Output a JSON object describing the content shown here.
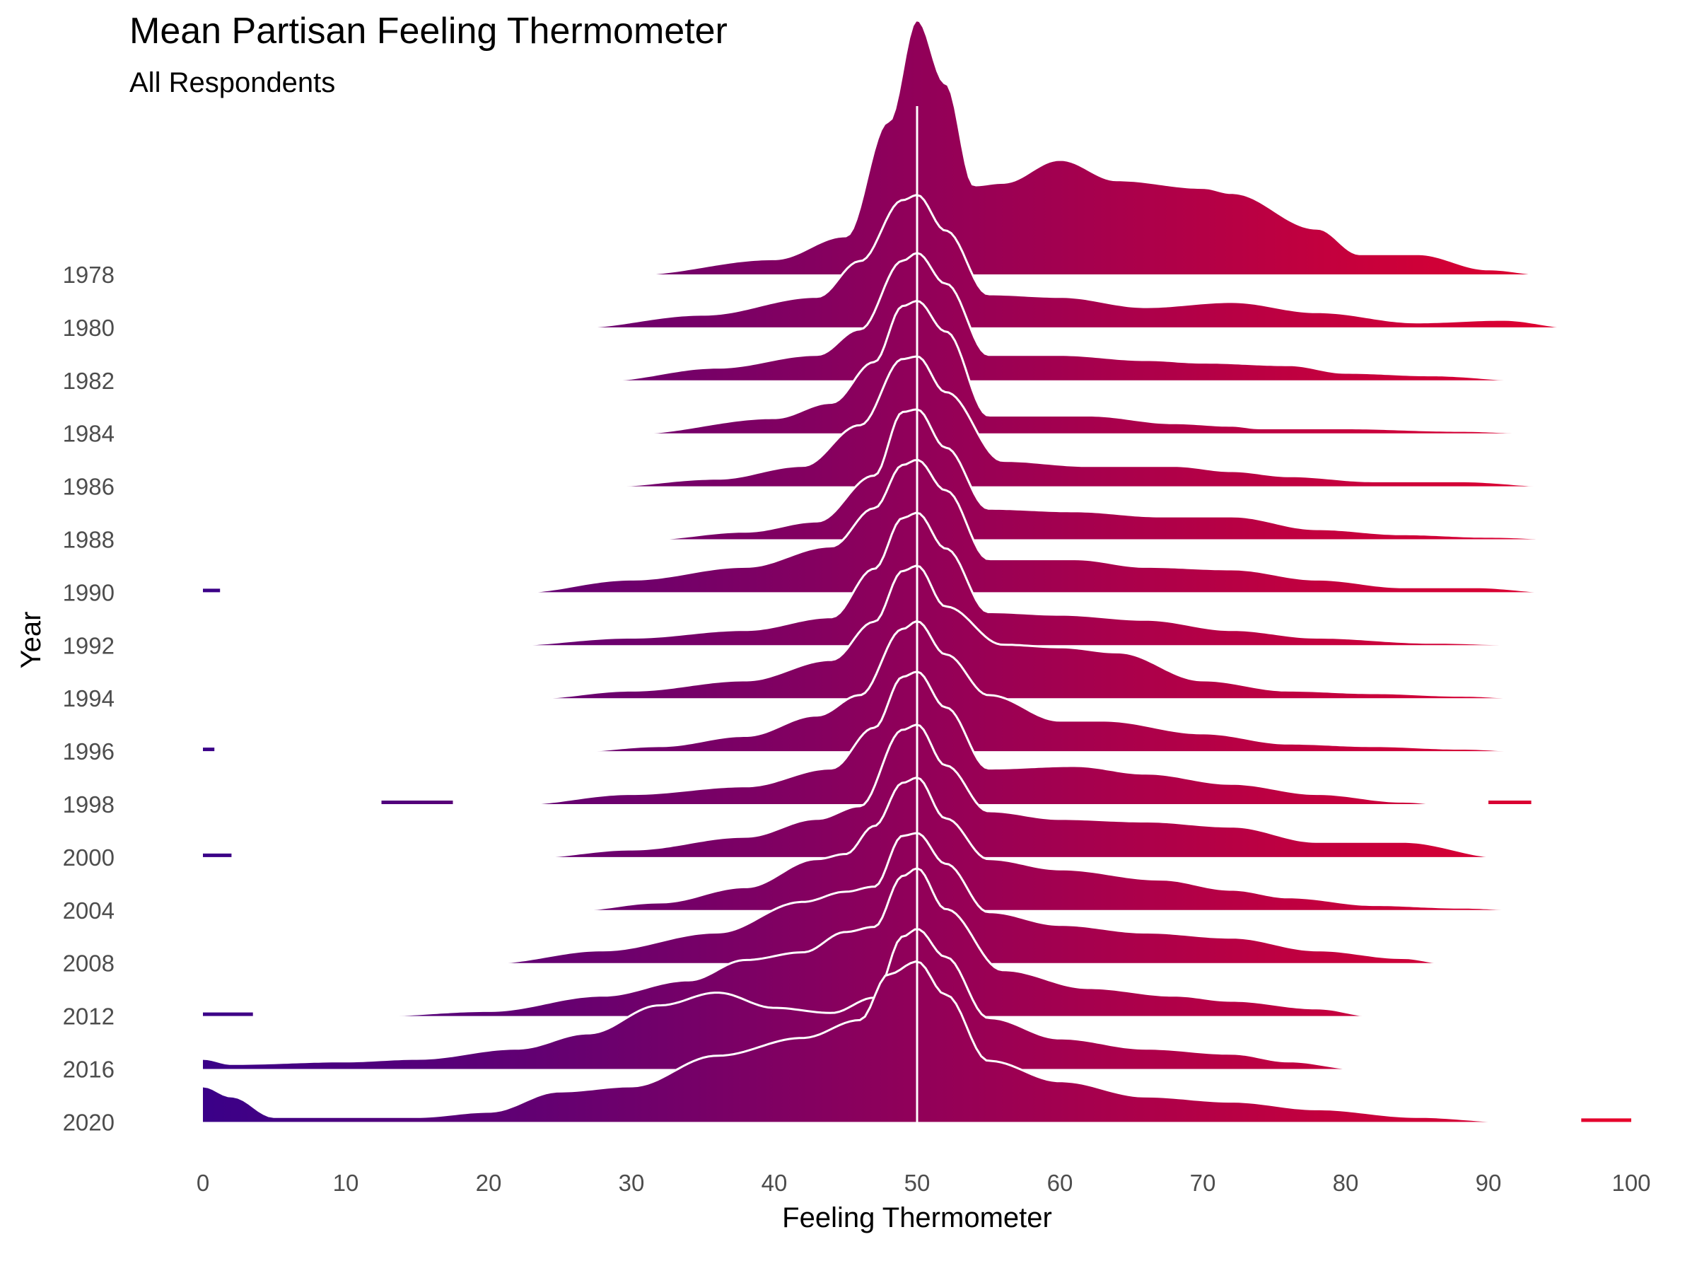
{
  "chart_data": {
    "type": "ridgeline",
    "title": "Mean Partisan Feeling Thermometer",
    "subtitle": "All Respondents",
    "xlabel": "Feeling Thermometer",
    "ylabel": "Year",
    "xlim": [
      0,
      100
    ],
    "x_ticks": [
      "0",
      "10",
      "20",
      "30",
      "40",
      "50",
      "60",
      "70",
      "80",
      "90",
      "100"
    ],
    "reference_line_x": 50,
    "gradient_colors": {
      "low": "#3a0088",
      "high": "#e8002a"
    },
    "years": [
      "1978",
      "1980",
      "1982",
      "1984",
      "1986",
      "1988",
      "1990",
      "1992",
      "1994",
      "1996",
      "1998",
      "2000",
      "2004",
      "2008",
      "2012",
      "2016",
      "2020"
    ],
    "series": [
      {
        "name": "1978",
        "range": [
          30,
          94
        ],
        "fragments": [],
        "density": [
          [
            30,
            0
          ],
          [
            40,
            0.06
          ],
          [
            45,
            0.15
          ],
          [
            48,
            0.6
          ],
          [
            50,
            1.0
          ],
          [
            52,
            0.75
          ],
          [
            54,
            0.35
          ],
          [
            56,
            0.36
          ],
          [
            60,
            0.45
          ],
          [
            64,
            0.37
          ],
          [
            70,
            0.34
          ],
          [
            72,
            0.32
          ],
          [
            78,
            0.18
          ],
          [
            81,
            0.08
          ],
          [
            85,
            0.08
          ],
          [
            90,
            0.02
          ],
          [
            94,
            0
          ]
        ]
      },
      {
        "name": "1980",
        "range": [
          26,
          96
        ],
        "fragments": [],
        "density": [
          [
            26,
            0
          ],
          [
            35,
            0.05
          ],
          [
            43,
            0.12
          ],
          [
            46,
            0.26
          ],
          [
            49,
            0.5
          ],
          [
            50,
            0.52
          ],
          [
            52,
            0.38
          ],
          [
            55,
            0.13
          ],
          [
            60,
            0.12
          ],
          [
            66,
            0.08
          ],
          [
            72,
            0.1
          ],
          [
            78,
            0.06
          ],
          [
            85,
            0.02
          ],
          [
            91,
            0.03
          ],
          [
            96,
            0
          ]
        ]
      },
      {
        "name": "1982",
        "range": [
          28,
          93
        ],
        "fragments": [],
        "density": [
          [
            28,
            0
          ],
          [
            36,
            0.05
          ],
          [
            43,
            0.1
          ],
          [
            46,
            0.2
          ],
          [
            49,
            0.47
          ],
          [
            50,
            0.5
          ],
          [
            52,
            0.38
          ],
          [
            55,
            0.1
          ],
          [
            60,
            0.1
          ],
          [
            66,
            0.08
          ],
          [
            70,
            0.07
          ],
          [
            76,
            0.06
          ],
          [
            80,
            0.03
          ],
          [
            86,
            0.02
          ],
          [
            93,
            0
          ]
        ]
      },
      {
        "name": "1984",
        "range": [
          30,
          94
        ],
        "fragments": [],
        "density": [
          [
            30,
            0
          ],
          [
            40,
            0.06
          ],
          [
            44,
            0.12
          ],
          [
            47,
            0.28
          ],
          [
            49,
            0.5
          ],
          [
            50,
            0.52
          ],
          [
            52,
            0.4
          ],
          [
            55,
            0.07
          ],
          [
            62,
            0.07
          ],
          [
            68,
            0.04
          ],
          [
            72,
            0.03
          ],
          [
            74,
            0.02
          ],
          [
            80,
            0.02
          ],
          [
            88,
            0.01
          ],
          [
            94,
            0
          ]
        ]
      },
      {
        "name": "1986",
        "range": [
          28,
          95
        ],
        "fragments": [],
        "density": [
          [
            28,
            0
          ],
          [
            36,
            0.03
          ],
          [
            42,
            0.08
          ],
          [
            46,
            0.24
          ],
          [
            49,
            0.5
          ],
          [
            50,
            0.51
          ],
          [
            52,
            0.37
          ],
          [
            56,
            0.1
          ],
          [
            62,
            0.08
          ],
          [
            68,
            0.08
          ],
          [
            72,
            0.06
          ],
          [
            76,
            0.04
          ],
          [
            82,
            0.02
          ],
          [
            88,
            0.02
          ],
          [
            95,
            0
          ]
        ]
      },
      {
        "name": "1988",
        "range": [
          31,
          96
        ],
        "fragments": [],
        "density": [
          [
            31,
            0
          ],
          [
            38,
            0.03
          ],
          [
            43,
            0.07
          ],
          [
            47,
            0.25
          ],
          [
            49,
            0.5
          ],
          [
            50,
            0.51
          ],
          [
            52,
            0.36
          ],
          [
            55,
            0.12
          ],
          [
            61,
            0.11
          ],
          [
            67,
            0.09
          ],
          [
            72,
            0.09
          ],
          [
            78,
            0.04
          ],
          [
            84,
            0.02
          ],
          [
            90,
            0.01
          ],
          [
            96,
            0
          ]
        ]
      },
      {
        "name": "1990",
        "range": [
          22,
          95
        ],
        "fragments": [
          [
            0,
            1.2
          ]
        ],
        "density": [
          [
            22,
            0
          ],
          [
            30,
            0.05
          ],
          [
            38,
            0.1
          ],
          [
            44,
            0.18
          ],
          [
            47,
            0.33
          ],
          [
            49,
            0.5
          ],
          [
            50,
            0.52
          ],
          [
            52,
            0.4
          ],
          [
            55,
            0.13
          ],
          [
            61,
            0.13
          ],
          [
            66,
            0.1
          ],
          [
            72,
            0.09
          ],
          [
            78,
            0.05
          ],
          [
            84,
            0.02
          ],
          [
            89,
            0.02
          ],
          [
            95,
            0
          ]
        ]
      },
      {
        "name": "1992",
        "range": [
          21,
          94
        ],
        "fragments": [],
        "density": [
          [
            21,
            0
          ],
          [
            30,
            0.03
          ],
          [
            38,
            0.06
          ],
          [
            44,
            0.11
          ],
          [
            47,
            0.3
          ],
          [
            49,
            0.5
          ],
          [
            50,
            0.52
          ],
          [
            52,
            0.38
          ],
          [
            55,
            0.13
          ],
          [
            60,
            0.12
          ],
          [
            66,
            0.1
          ],
          [
            72,
            0.06
          ],
          [
            78,
            0.03
          ],
          [
            86,
            0.01
          ],
          [
            94,
            0
          ]
        ]
      },
      {
        "name": "1994",
        "range": [
          23,
          93
        ],
        "fragments": [],
        "density": [
          [
            23,
            0
          ],
          [
            30,
            0.03
          ],
          [
            38,
            0.07
          ],
          [
            44,
            0.15
          ],
          [
            47,
            0.3
          ],
          [
            49,
            0.5
          ],
          [
            50,
            0.52
          ],
          [
            52,
            0.36
          ],
          [
            56,
            0.21
          ],
          [
            60,
            0.2
          ],
          [
            64,
            0.18
          ],
          [
            70,
            0.07
          ],
          [
            76,
            0.03
          ],
          [
            82,
            0.02
          ],
          [
            88,
            0.01
          ],
          [
            93,
            0
          ]
        ]
      },
      {
        "name": "1996",
        "range": [
          26,
          93
        ],
        "fragments": [
          [
            0,
            0.8
          ]
        ],
        "density": [
          [
            26,
            0
          ],
          [
            32,
            0.02
          ],
          [
            38,
            0.06
          ],
          [
            43,
            0.14
          ],
          [
            46,
            0.22
          ],
          [
            49,
            0.48
          ],
          [
            50,
            0.51
          ],
          [
            52,
            0.38
          ],
          [
            55,
            0.22
          ],
          [
            60,
            0.12
          ],
          [
            63,
            0.12
          ],
          [
            70,
            0.07
          ],
          [
            76,
            0.03
          ],
          [
            82,
            0.02
          ],
          [
            88,
            0.01
          ],
          [
            93,
            0
          ]
        ]
      },
      {
        "name": "1998",
        "range": [
          22,
          87
        ],
        "fragments": [
          [
            12.5,
            17.5
          ],
          [
            90,
            93
          ]
        ],
        "density": [
          [
            22,
            0
          ],
          [
            30,
            0.04
          ],
          [
            38,
            0.07
          ],
          [
            44,
            0.14
          ],
          [
            47,
            0.3
          ],
          [
            49,
            0.5
          ],
          [
            50,
            0.52
          ],
          [
            52,
            0.38
          ],
          [
            55,
            0.14
          ],
          [
            61,
            0.15
          ],
          [
            66,
            0.12
          ],
          [
            72,
            0.08
          ],
          [
            78,
            0.04
          ],
          [
            84,
            0.01
          ],
          [
            87,
            0
          ]
        ]
      },
      {
        "name": "2000",
        "range": [
          23,
          91
        ],
        "fragments": [
          [
            0,
            2
          ]
        ],
        "density": [
          [
            23,
            0
          ],
          [
            30,
            0.03
          ],
          [
            38,
            0.08
          ],
          [
            43,
            0.15
          ],
          [
            46,
            0.2
          ],
          [
            49,
            0.5
          ],
          [
            50,
            0.52
          ],
          [
            52,
            0.36
          ],
          [
            55,
            0.18
          ],
          [
            60,
            0.15
          ],
          [
            66,
            0.14
          ],
          [
            72,
            0.12
          ],
          [
            78,
            0.06
          ],
          [
            84,
            0.06
          ],
          [
            91,
            0
          ]
        ]
      },
      {
        "name": "2004",
        "range": [
          26,
          93
        ],
        "fragments": [],
        "density": [
          [
            26,
            0
          ],
          [
            32,
            0.03
          ],
          [
            38,
            0.09
          ],
          [
            43,
            0.2
          ],
          [
            45,
            0.22
          ],
          [
            47,
            0.33
          ],
          [
            49,
            0.5
          ],
          [
            50,
            0.52
          ],
          [
            52,
            0.36
          ],
          [
            55,
            0.2
          ],
          [
            60,
            0.16
          ],
          [
            67,
            0.12
          ],
          [
            72,
            0.08
          ],
          [
            76,
            0.05
          ],
          [
            82,
            0.02
          ],
          [
            88,
            0.01
          ],
          [
            93,
            0
          ]
        ]
      },
      {
        "name": "2008",
        "range": [
          20,
          87
        ],
        "fragments": [],
        "density": [
          [
            20,
            0
          ],
          [
            28,
            0.05
          ],
          [
            36,
            0.12
          ],
          [
            42,
            0.24
          ],
          [
            45,
            0.28
          ],
          [
            47,
            0.3
          ],
          [
            49,
            0.5
          ],
          [
            50,
            0.51
          ],
          [
            52,
            0.39
          ],
          [
            55,
            0.2
          ],
          [
            60,
            0.15
          ],
          [
            66,
            0.12
          ],
          [
            72,
            0.1
          ],
          [
            78,
            0.05
          ],
          [
            84,
            0.02
          ],
          [
            87,
            0
          ]
        ]
      },
      {
        "name": "2012",
        "range": [
          11.5,
          82
        ],
        "fragments": [
          [
            0,
            3.5
          ]
        ],
        "density": [
          [
            11.5,
            0
          ],
          [
            20,
            0.02
          ],
          [
            28,
            0.08
          ],
          [
            34,
            0.14
          ],
          [
            38,
            0.22
          ],
          [
            42,
            0.25
          ],
          [
            45,
            0.33
          ],
          [
            47,
            0.35
          ],
          [
            49,
            0.55
          ],
          [
            50,
            0.58
          ],
          [
            52,
            0.42
          ],
          [
            56,
            0.18
          ],
          [
            62,
            0.11
          ],
          [
            68,
            0.08
          ],
          [
            72,
            0.06
          ],
          [
            78,
            0.03
          ],
          [
            82,
            0
          ]
        ]
      },
      {
        "name": "2016",
        "range": [
          0,
          81
        ],
        "fragments": [],
        "density": [
          [
            0,
            0.04
          ],
          [
            2,
            0.02
          ],
          [
            10,
            0.03
          ],
          [
            15,
            0.04
          ],
          [
            22,
            0.08
          ],
          [
            27,
            0.14
          ],
          [
            32,
            0.25
          ],
          [
            36,
            0.3
          ],
          [
            40,
            0.24
          ],
          [
            44,
            0.22
          ],
          [
            47,
            0.28
          ],
          [
            49,
            0.52
          ],
          [
            50,
            0.55
          ],
          [
            52,
            0.44
          ],
          [
            55,
            0.2
          ],
          [
            60,
            0.12
          ],
          [
            66,
            0.08
          ],
          [
            72,
            0.06
          ],
          [
            76,
            0.03
          ],
          [
            81,
            0
          ]
        ]
      },
      {
        "name": "2020",
        "range": [
          0,
          92
        ],
        "fragments": [
          [
            96.5,
            100
          ]
        ],
        "density": [
          [
            0,
            0.14
          ],
          [
            2,
            0.1
          ],
          [
            5,
            0.02
          ],
          [
            15,
            0.02
          ],
          [
            20,
            0.04
          ],
          [
            25,
            0.12
          ],
          [
            30,
            0.14
          ],
          [
            36,
            0.26
          ],
          [
            42,
            0.33
          ],
          [
            46,
            0.4
          ],
          [
            48,
            0.58
          ],
          [
            50,
            0.63
          ],
          [
            52,
            0.5
          ],
          [
            55,
            0.24
          ],
          [
            60,
            0.16
          ],
          [
            66,
            0.1
          ],
          [
            72,
            0.08
          ],
          [
            78,
            0.05
          ],
          [
            85,
            0.02
          ],
          [
            92,
            0
          ]
        ]
      }
    ]
  }
}
